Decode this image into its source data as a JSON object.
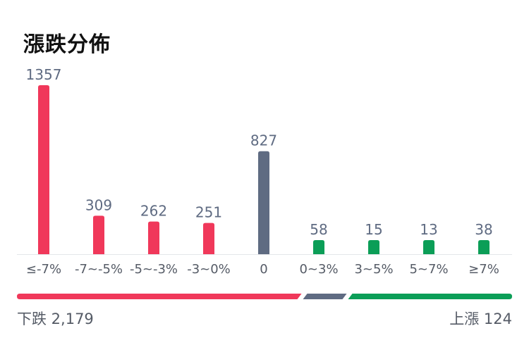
{
  "title": "漲跌分佈",
  "colors": {
    "down": "#f0385a",
    "flat": "#5f6b82",
    "up": "#0b9e57",
    "value_text": "#5f6b82",
    "tick_text": "#555b66",
    "axis": "#e4e6ea"
  },
  "chart_data": {
    "type": "bar",
    "title": "漲跌分佈",
    "categories": [
      "≤-7%",
      "-7~-5%",
      "-5~-3%",
      "-3~0%",
      "0",
      "0~3%",
      "3~5%",
      "5~7%",
      "≥7%"
    ],
    "values": [
      1357,
      309,
      262,
      251,
      827,
      58,
      15,
      13,
      38
    ],
    "bar_groups": [
      "down",
      "down",
      "down",
      "down",
      "flat",
      "up",
      "up",
      "up",
      "up"
    ],
    "ylim": [
      0,
      1357
    ],
    "grid": false,
    "legend": "none"
  },
  "summary": {
    "down_label": "下跌 2,179",
    "up_label": "上漲 124",
    "down_total": 2179,
    "flat_total": 827,
    "up_total": 124
  }
}
